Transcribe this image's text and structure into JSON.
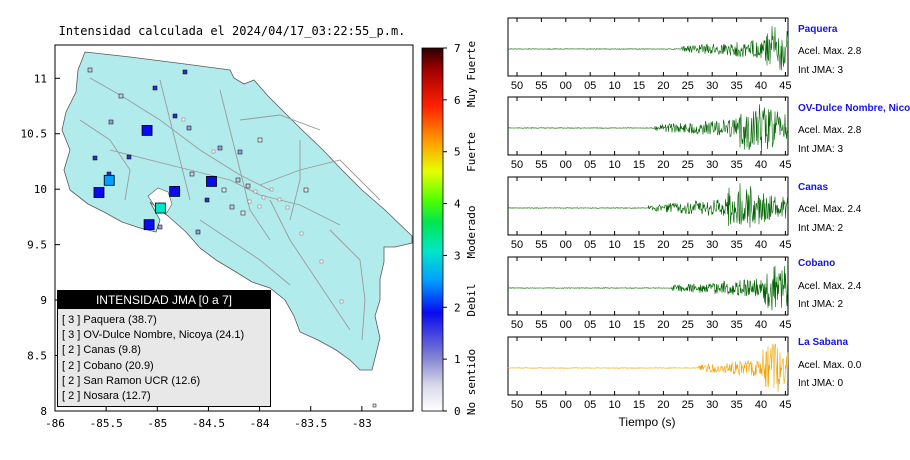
{
  "map": {
    "title": "Intensidad calculada el 2024/04/17_03:22:55_p.m.",
    "x_ticks": [
      "-86",
      "-85.5",
      "-85",
      "-84.5",
      "-84",
      "-83.5",
      "-83"
    ],
    "y_ticks": [
      "11",
      "10.5",
      "10",
      "9.5",
      "9",
      "8.5",
      "8"
    ],
    "land_color": "#b2ebeb",
    "road_color": "#9a9a9a"
  },
  "colorbar": {
    "ticks": [
      "0",
      "1",
      "2",
      "3",
      "4",
      "5",
      "6",
      "7"
    ],
    "labels": [
      "No sentido",
      "Debil",
      "Moderado",
      "Fuerte",
      "Muy Fuerte"
    ]
  },
  "legend": {
    "title": "INTENSIDAD JMA [0 a 7]",
    "items": [
      {
        "text": "[ 3 ]  Paquera (38.7)"
      },
      {
        "text": "[ 3 ]  OV-Dulce Nombre, Nicoya (24.1)"
      },
      {
        "text": "[ 2 ]  Canas (9.8)"
      },
      {
        "text": "[ 2 ]  Cobano (20.9)"
      },
      {
        "text": "[ 2 ]  San Ramon UCR (12.6)"
      },
      {
        "text": "[ 2 ]  Nosara (12.7)"
      }
    ]
  },
  "waveforms": {
    "xlabel": "Tiempo (s)",
    "x_ticks": [
      "50",
      "55",
      "00",
      "05",
      "10",
      "15",
      "20",
      "25",
      "30",
      "35",
      "40",
      "45"
    ],
    "stations": [
      {
        "name": "Paquera",
        "acel": "Acel. Max. 2.8",
        "jma": "Int JMA: 3",
        "color": "#006400",
        "onset": 0.62,
        "peak": 0.97
      },
      {
        "name": "OV-Dulce Nombre, Nicoya",
        "acel": "Acel. Max. 2.8",
        "jma": "Int JMA: 3",
        "color": "#006400",
        "onset": 0.52,
        "peak": 0.88
      },
      {
        "name": "Canas",
        "acel": "Acel. Max. 2.4",
        "jma": "Int JMA: 2",
        "color": "#006400",
        "onset": 0.5,
        "peak": 0.83
      },
      {
        "name": "Cobano",
        "acel": "Acel. Max. 2.4",
        "jma": "Int JMA: 2",
        "color": "#006400",
        "onset": 0.58,
        "peak": 0.97
      },
      {
        "name": "La Sabana",
        "acel": "Acel. Max. 0.0",
        "jma": "Int JMA: 0",
        "color": "#f5a300",
        "onset": 0.68,
        "peak": 0.95
      }
    ]
  },
  "chart_data": [
    {
      "type": "scatter",
      "title": "Intensidad calculada el 2024/04/17_03:22:55_p.m.",
      "xlim": [
        -86,
        -82.5
      ],
      "ylim": [
        8,
        11.3
      ],
      "colorbar": {
        "min": 0,
        "max": 7,
        "labels": [
          "No sentido",
          "Debil",
          "Moderado",
          "Fuerte",
          "Muy Fuerte"
        ]
      },
      "stations": [
        {
          "lon": -85.57,
          "lat": 9.97,
          "intensity": 2.2,
          "size": "large"
        },
        {
          "lon": -85.47,
          "lat": 10.08,
          "intensity": 2.6,
          "size": "large"
        },
        {
          "lon": -85.1,
          "lat": 10.53,
          "intensity": 2.1,
          "size": "large"
        },
        {
          "lon": -84.83,
          "lat": 9.98,
          "intensity": 2.2,
          "size": "large"
        },
        {
          "lon": -84.47,
          "lat": 10.07,
          "intensity": 2.2,
          "size": "large"
        },
        {
          "lon": -85.08,
          "lat": 9.68,
          "intensity": 2.1,
          "size": "large"
        },
        {
          "lon": -84.97,
          "lat": 9.83,
          "intensity": 3.1,
          "size": "large"
        }
      ]
    }
  ]
}
